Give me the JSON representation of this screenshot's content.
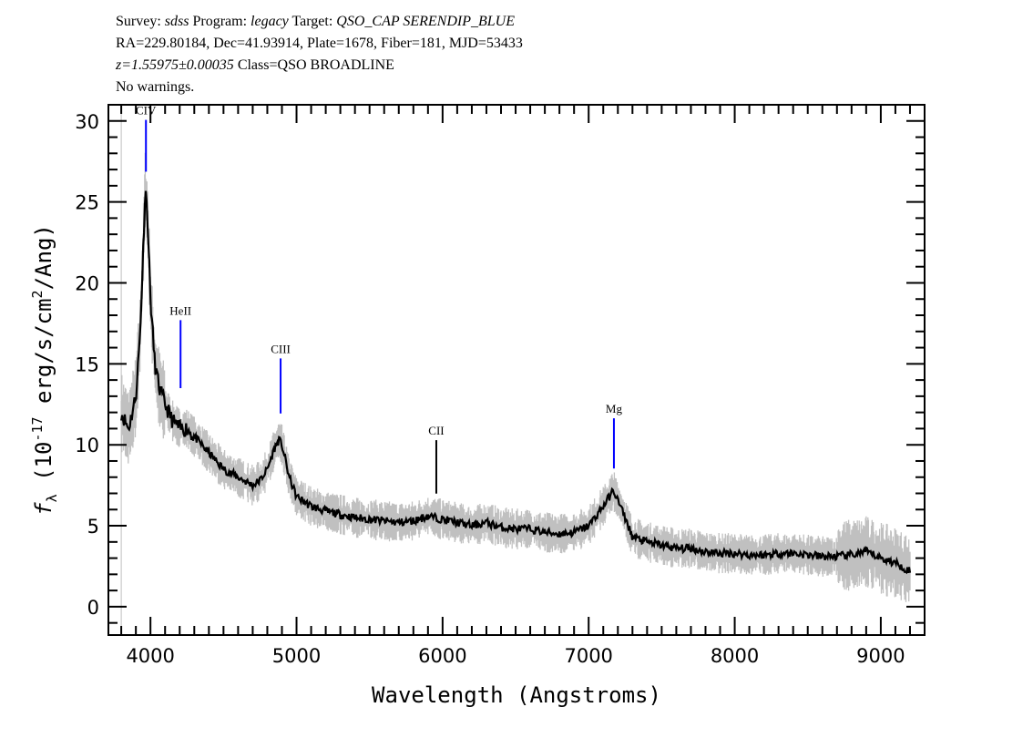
{
  "header": {
    "survey_label": "Survey:",
    "survey": "sdss",
    "program_label": "Program:",
    "program": "legacy",
    "target_label": "Target:",
    "target": "QSO_CAP SERENDIP_BLUE",
    "line2": "RA=229.80184, Dec=41.93914, Plate=1678, Fiber=181, MJD=53433",
    "redshift": "z=1.55975±0.00035",
    "class": "Class=QSO BROADLINE",
    "warnings": "No warnings."
  },
  "chart_data": {
    "type": "line",
    "title": "",
    "xlabel": "Wavelength (Angstroms)",
    "ylabel": "f_λ (10^-17 erg/s/cm^2/Ang)",
    "xlim": [
      3712,
      9300
    ],
    "ylim": [
      -1.75,
      31
    ],
    "xticks": [
      4000,
      5000,
      6000,
      7000,
      8000,
      9000
    ],
    "yticks": [
      0,
      5,
      10,
      15,
      20,
      25,
      30
    ],
    "grid": false,
    "colors": {
      "model": "#000000",
      "flux": "#c0c0c0",
      "line_marker": "#0000ff",
      "line_marker_alt": "#000000"
    },
    "series": [
      {
        "x": [
          3800,
          3850,
          3900,
          3930,
          3950,
          3965,
          3980,
          4000,
          4030,
          4060,
          4100,
          4150,
          4200,
          4250,
          4300,
          4400,
          4500,
          4600,
          4700,
          4750,
          4800,
          4850,
          4880,
          4900,
          4950,
          5000,
          5100,
          5200,
          5300,
          5400,
          5500,
          5600,
          5700,
          5800,
          5900,
          6000,
          6100,
          6200,
          6300,
          6400,
          6500,
          6600,
          6700,
          6800,
          6900,
          7000,
          7100,
          7170,
          7250,
          7300,
          7400,
          7500,
          7600,
          7700,
          7800,
          7900,
          8000,
          8100,
          8200,
          8300,
          8400,
          8500,
          8600,
          8700,
          8800,
          8900,
          9000,
          9100,
          9200
        ],
        "y": [
          12,
          11,
          13,
          17,
          22,
          26,
          24,
          19,
          15,
          13.5,
          12.5,
          11.5,
          11,
          11,
          10.5,
          9.5,
          8.5,
          8,
          7.5,
          7.8,
          8.5,
          9.8,
          10.3,
          10,
          8,
          6.8,
          6.2,
          5.9,
          5.7,
          5.5,
          5.4,
          5.3,
          5.2,
          5.3,
          5.6,
          5.4,
          5.2,
          5.0,
          5.2,
          4.9,
          4.8,
          4.8,
          4.6,
          4.5,
          4.6,
          5.0,
          6.2,
          7.2,
          5.5,
          4.3,
          4.0,
          3.8,
          3.6,
          3.6,
          3.4,
          3.3,
          3.3,
          3.2,
          3.2,
          3.3,
          3.3,
          3.2,
          3.1,
          3.1,
          3.2,
          3.4,
          3.0,
          2.7,
          2.2
        ]
      }
    ],
    "lines": [
      {
        "label": "CIV",
        "wavelength": 3969,
        "color": "#0000ff"
      },
      {
        "label": "HeII",
        "wavelength": 4206,
        "color": "#0000ff"
      },
      {
        "label": "CIII",
        "wavelength": 4891,
        "color": "#0000ff"
      },
      {
        "label": "CII",
        "wavelength": 5957,
        "color": "#000000"
      },
      {
        "label": "Mg",
        "wavelength": 7173,
        "color": "#0000ff"
      }
    ]
  }
}
